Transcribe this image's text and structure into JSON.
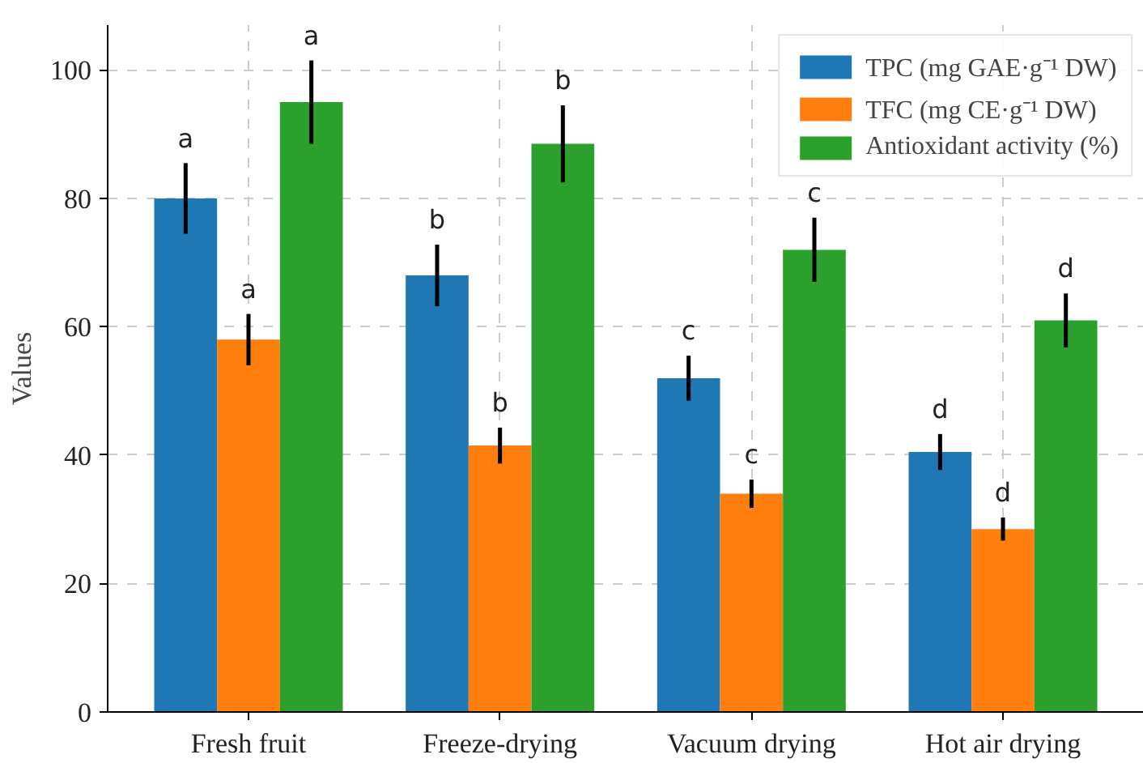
{
  "chart_data": {
    "type": "bar",
    "ylabel": "Values",
    "categories": [
      "Fresh fruit",
      "Freeze-drying",
      "Vacuum drying",
      "Hot air drying"
    ],
    "series": [
      {
        "name": "TPC (mg GAE·g⁻¹ DW)",
        "color": "#1f77b4",
        "values": [
          80,
          68,
          52,
          40.5
        ],
        "errors": [
          5.5,
          4.8,
          3.5,
          2.8
        ],
        "value_labels": [
          "a",
          "b",
          "c",
          "d"
        ]
      },
      {
        "name": "TFC (mg CE·g⁻¹ DW)",
        "color": "#ff7f0e",
        "values": [
          58,
          41.5,
          34,
          28.5
        ],
        "errors": [
          4,
          2.8,
          2.2,
          1.8
        ],
        "value_labels": [
          "a",
          "b",
          "c",
          "d"
        ]
      },
      {
        "name": "Antioxidant activity (%)",
        "color": "#2ca02c",
        "values": [
          95,
          88.5,
          72,
          61
        ],
        "errors": [
          6.5,
          6,
          5,
          4.2
        ],
        "value_labels": [
          "a",
          "b",
          "c",
          "d"
        ]
      }
    ],
    "ylim": [
      0,
      107
    ],
    "yticks": [
      0,
      20,
      40,
      60,
      80,
      100
    ],
    "grid": true,
    "legend": "top right"
  }
}
